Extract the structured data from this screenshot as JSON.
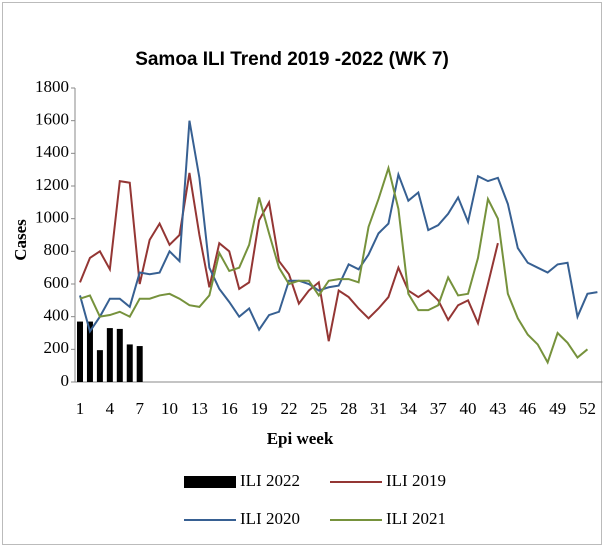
{
  "chart_data": {
    "type": "line",
    "title": "Samoa ILI Trend 2019 -2022 (WK 7)",
    "x_label": "Epi week",
    "y_label": "Cases",
    "categories": [
      "1",
      null,
      null,
      "4",
      null,
      null,
      "7",
      null,
      null,
      "10",
      null,
      null,
      "13",
      null,
      null,
      "16",
      null,
      null,
      "19",
      null,
      null,
      "22",
      null,
      null,
      "25",
      null,
      null,
      "28",
      null,
      null,
      "31",
      null,
      null,
      "34",
      null,
      null,
      "37",
      null,
      null,
      "40",
      null,
      null,
      "43",
      null,
      null,
      "46",
      null,
      null,
      "49",
      null,
      null,
      "52",
      null
    ],
    "ylim": [
      0,
      1800
    ],
    "yticks": [
      0,
      200,
      400,
      600,
      800,
      1000,
      1200,
      1400,
      1600,
      1800
    ],
    "series": [
      {
        "name": "ILI 2022",
        "type": "bar",
        "color": "#000000",
        "values": [
          370,
          370,
          195,
          330,
          325,
          230,
          220,
          null,
          null,
          null,
          null,
          null,
          null,
          null,
          null,
          null,
          null,
          null,
          null,
          null,
          null,
          null,
          null,
          null,
          null,
          null,
          null,
          null,
          null,
          null,
          null,
          null,
          null,
          null,
          null,
          null,
          null,
          null,
          null,
          null,
          null,
          null,
          null,
          null,
          null,
          null,
          null,
          null,
          null,
          null,
          null,
          null,
          null
        ]
      },
      {
        "name": "ILI 2019",
        "color": "#943634",
        "values": [
          610,
          760,
          800,
          690,
          1230,
          1220,
          600,
          870,
          970,
          840,
          900,
          1280,
          900,
          580,
          850,
          800,
          570,
          610,
          990,
          1100,
          740,
          660,
          480,
          560,
          610,
          250,
          560,
          520,
          450,
          390,
          450,
          520,
          700,
          560,
          520,
          560,
          500,
          380,
          470,
          500,
          360,
          600,
          850,
          null,
          null,
          null,
          null,
          null,
          null,
          null,
          null,
          null,
          null
        ]
      },
      {
        "name": "ILI 2020",
        "color": "#376092",
        "values": [
          530,
          310,
          400,
          510,
          510,
          460,
          670,
          660,
          670,
          800,
          740,
          1600,
          1250,
          700,
          570,
          490,
          400,
          450,
          320,
          410,
          430,
          620,
          620,
          600,
          560,
          580,
          590,
          720,
          690,
          780,
          910,
          970,
          1270,
          1110,
          1160,
          930,
          960,
          1030,
          1130,
          980,
          1260,
          1230,
          1250,
          1090,
          820,
          730,
          700,
          670,
          720,
          730,
          400,
          540,
          550
        ]
      },
      {
        "name": "ILI 2021",
        "color": "#76923c",
        "values": [
          510,
          530,
          400,
          410,
          430,
          400,
          510,
          510,
          530,
          540,
          510,
          470,
          460,
          530,
          790,
          680,
          700,
          840,
          1130,
          910,
          700,
          600,
          620,
          620,
          530,
          620,
          630,
          630,
          610,
          950,
          1120,
          1310,
          1060,
          540,
          440,
          440,
          470,
          640,
          530,
          540,
          760,
          1120,
          1000,
          540,
          390,
          290,
          230,
          120,
          300,
          240,
          150,
          200,
          null
        ]
      }
    ]
  }
}
